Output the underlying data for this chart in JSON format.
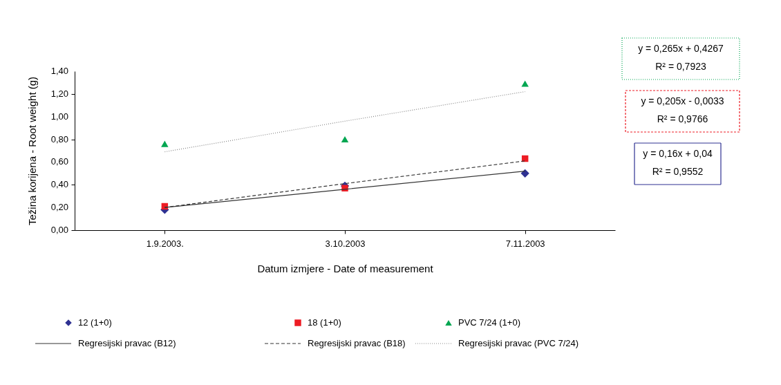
{
  "chart_data": {
    "type": "scatter",
    "xlabel": "Datum izmjere - Date of measurement",
    "ylabel": "Težina korijena - Root weight (g)",
    "categories": [
      "1.9.2003.",
      "3.10.2003",
      "7.11.2003"
    ],
    "ylim": [
      0,
      1.4
    ],
    "yticks": [
      {
        "value": 0,
        "label": "0,00"
      },
      {
        "value": 0.2,
        "label": "0,20"
      },
      {
        "value": 0.4,
        "label": "0,40"
      },
      {
        "value": 0.6,
        "label": "0,60"
      },
      {
        "value": 0.8,
        "label": "0,80"
      },
      {
        "value": 1.0,
        "label": "1,00"
      },
      {
        "value": 1.2,
        "label": "1,20"
      },
      {
        "value": 1.4,
        "label": "1,40"
      }
    ],
    "grid": false,
    "legend": "bottom",
    "series": [
      {
        "name": "12 (1+0)",
        "marker": "diamond",
        "color": "#2e3192",
        "values": [
          0.18,
          0.39,
          0.5
        ]
      },
      {
        "name": "18 (1+0)",
        "marker": "square",
        "color": "#ed1c24",
        "values": [
          0.21,
          0.37,
          0.63
        ]
      },
      {
        "name": "PVC 7/24 (1+0)",
        "marker": "triangle",
        "color": "#00a651",
        "values": [
          0.76,
          0.8,
          1.29
        ]
      },
      {
        "name": "Regresijski pravac (B12)",
        "type": "line",
        "line_style": "solid",
        "color": "#333333",
        "values": [
          0.2,
          0.36,
          0.52
        ]
      },
      {
        "name": "Regresijski pravac (B18)",
        "type": "line",
        "line_style": "dashed",
        "color": "#333333",
        "values": [
          0.2,
          0.41,
          0.61
        ]
      },
      {
        "name": "Regresijski pravac (PVC 7/24)",
        "type": "line",
        "line_style": "dotted",
        "color": "#888888",
        "values": [
          0.69,
          0.96,
          1.22
        ]
      }
    ],
    "annotations": [
      "y = 0,265x + 0,4267",
      "R² = 0,7923",
      "y = 0,205x - 0,0033",
      "R² = 0,9766",
      "y = 0,16x + 0,04",
      "R² = 0,9552"
    ]
  }
}
